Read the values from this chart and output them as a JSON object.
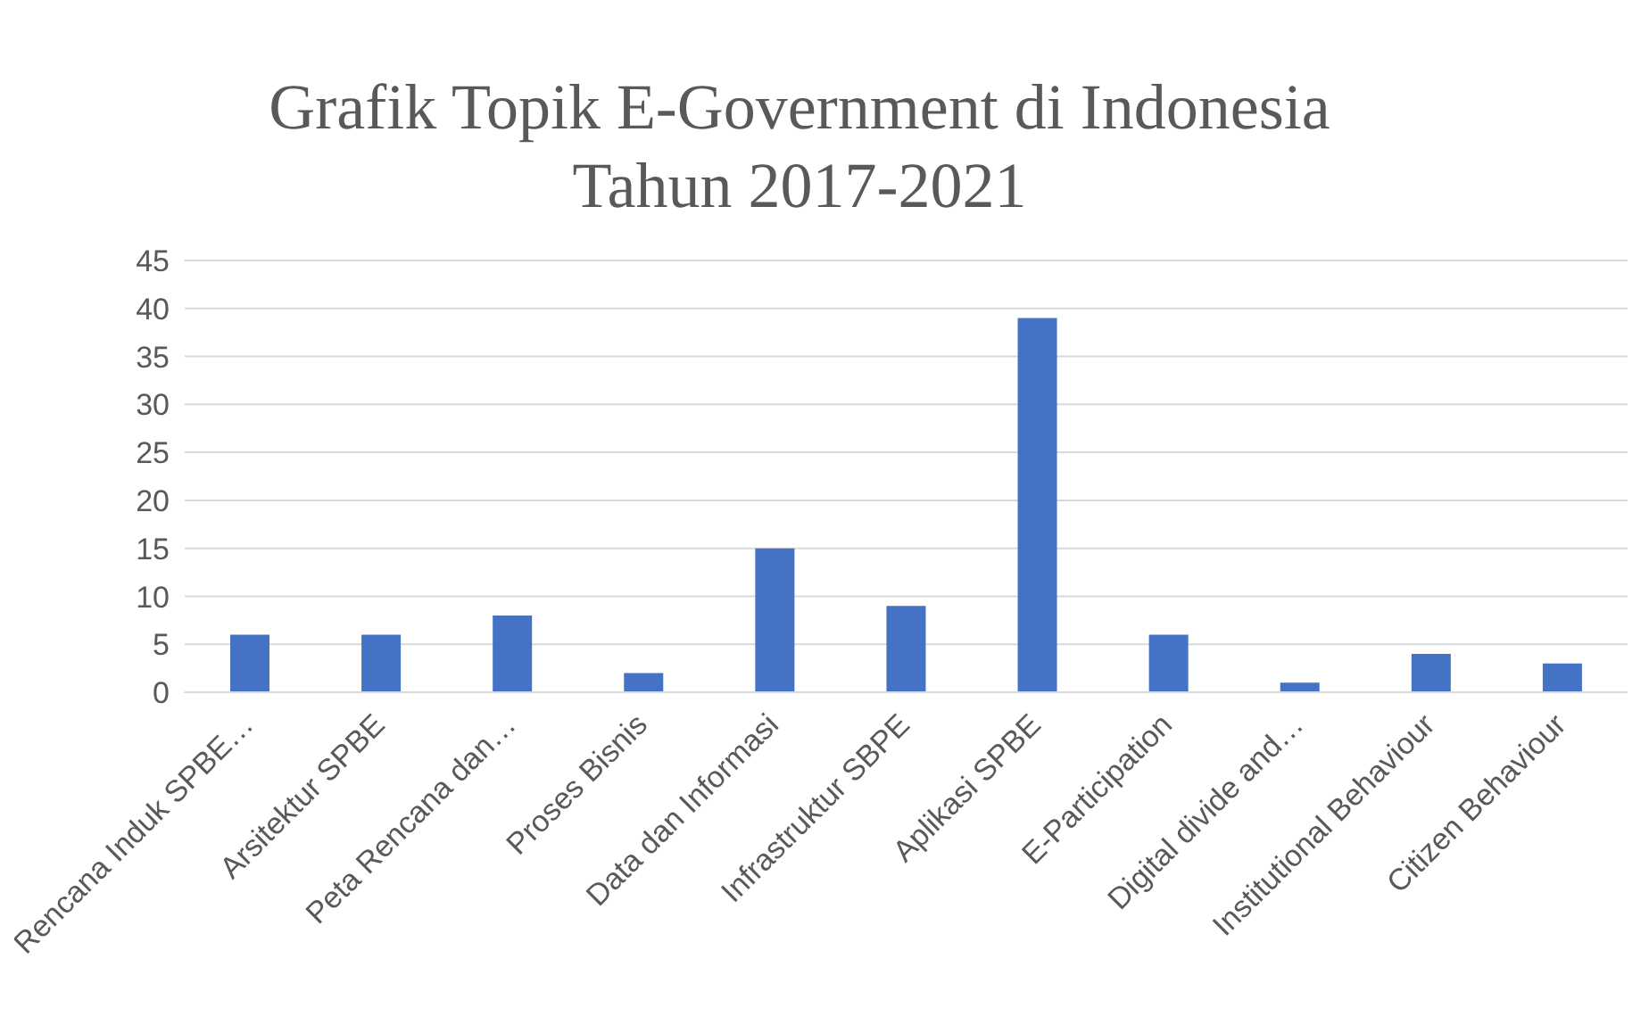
{
  "chart_data": {
    "type": "bar",
    "title": "Grafik Topik E-Government di Indonesia Tahun 2017-2021",
    "categories": [
      "Rencana Induk SPBE…",
      "Arsitektur SPBE",
      "Peta Rencana dan…",
      "Proses Bisnis",
      "Data dan Informasi",
      "Infrastruktur SBPE",
      "Aplikasi SPBE",
      "E-Participation",
      "Digital divide and…",
      "Institutional Behaviour",
      "Citizen Behaviour"
    ],
    "values": [
      6,
      6,
      8,
      2,
      15,
      9,
      39,
      6,
      1,
      4,
      3
    ],
    "color": "#4472c4",
    "ylim": [
      0,
      45
    ],
    "yticks": [
      0,
      5,
      10,
      15,
      20,
      25,
      30,
      35,
      40,
      45
    ],
    "grid": "y",
    "legend": false
  }
}
